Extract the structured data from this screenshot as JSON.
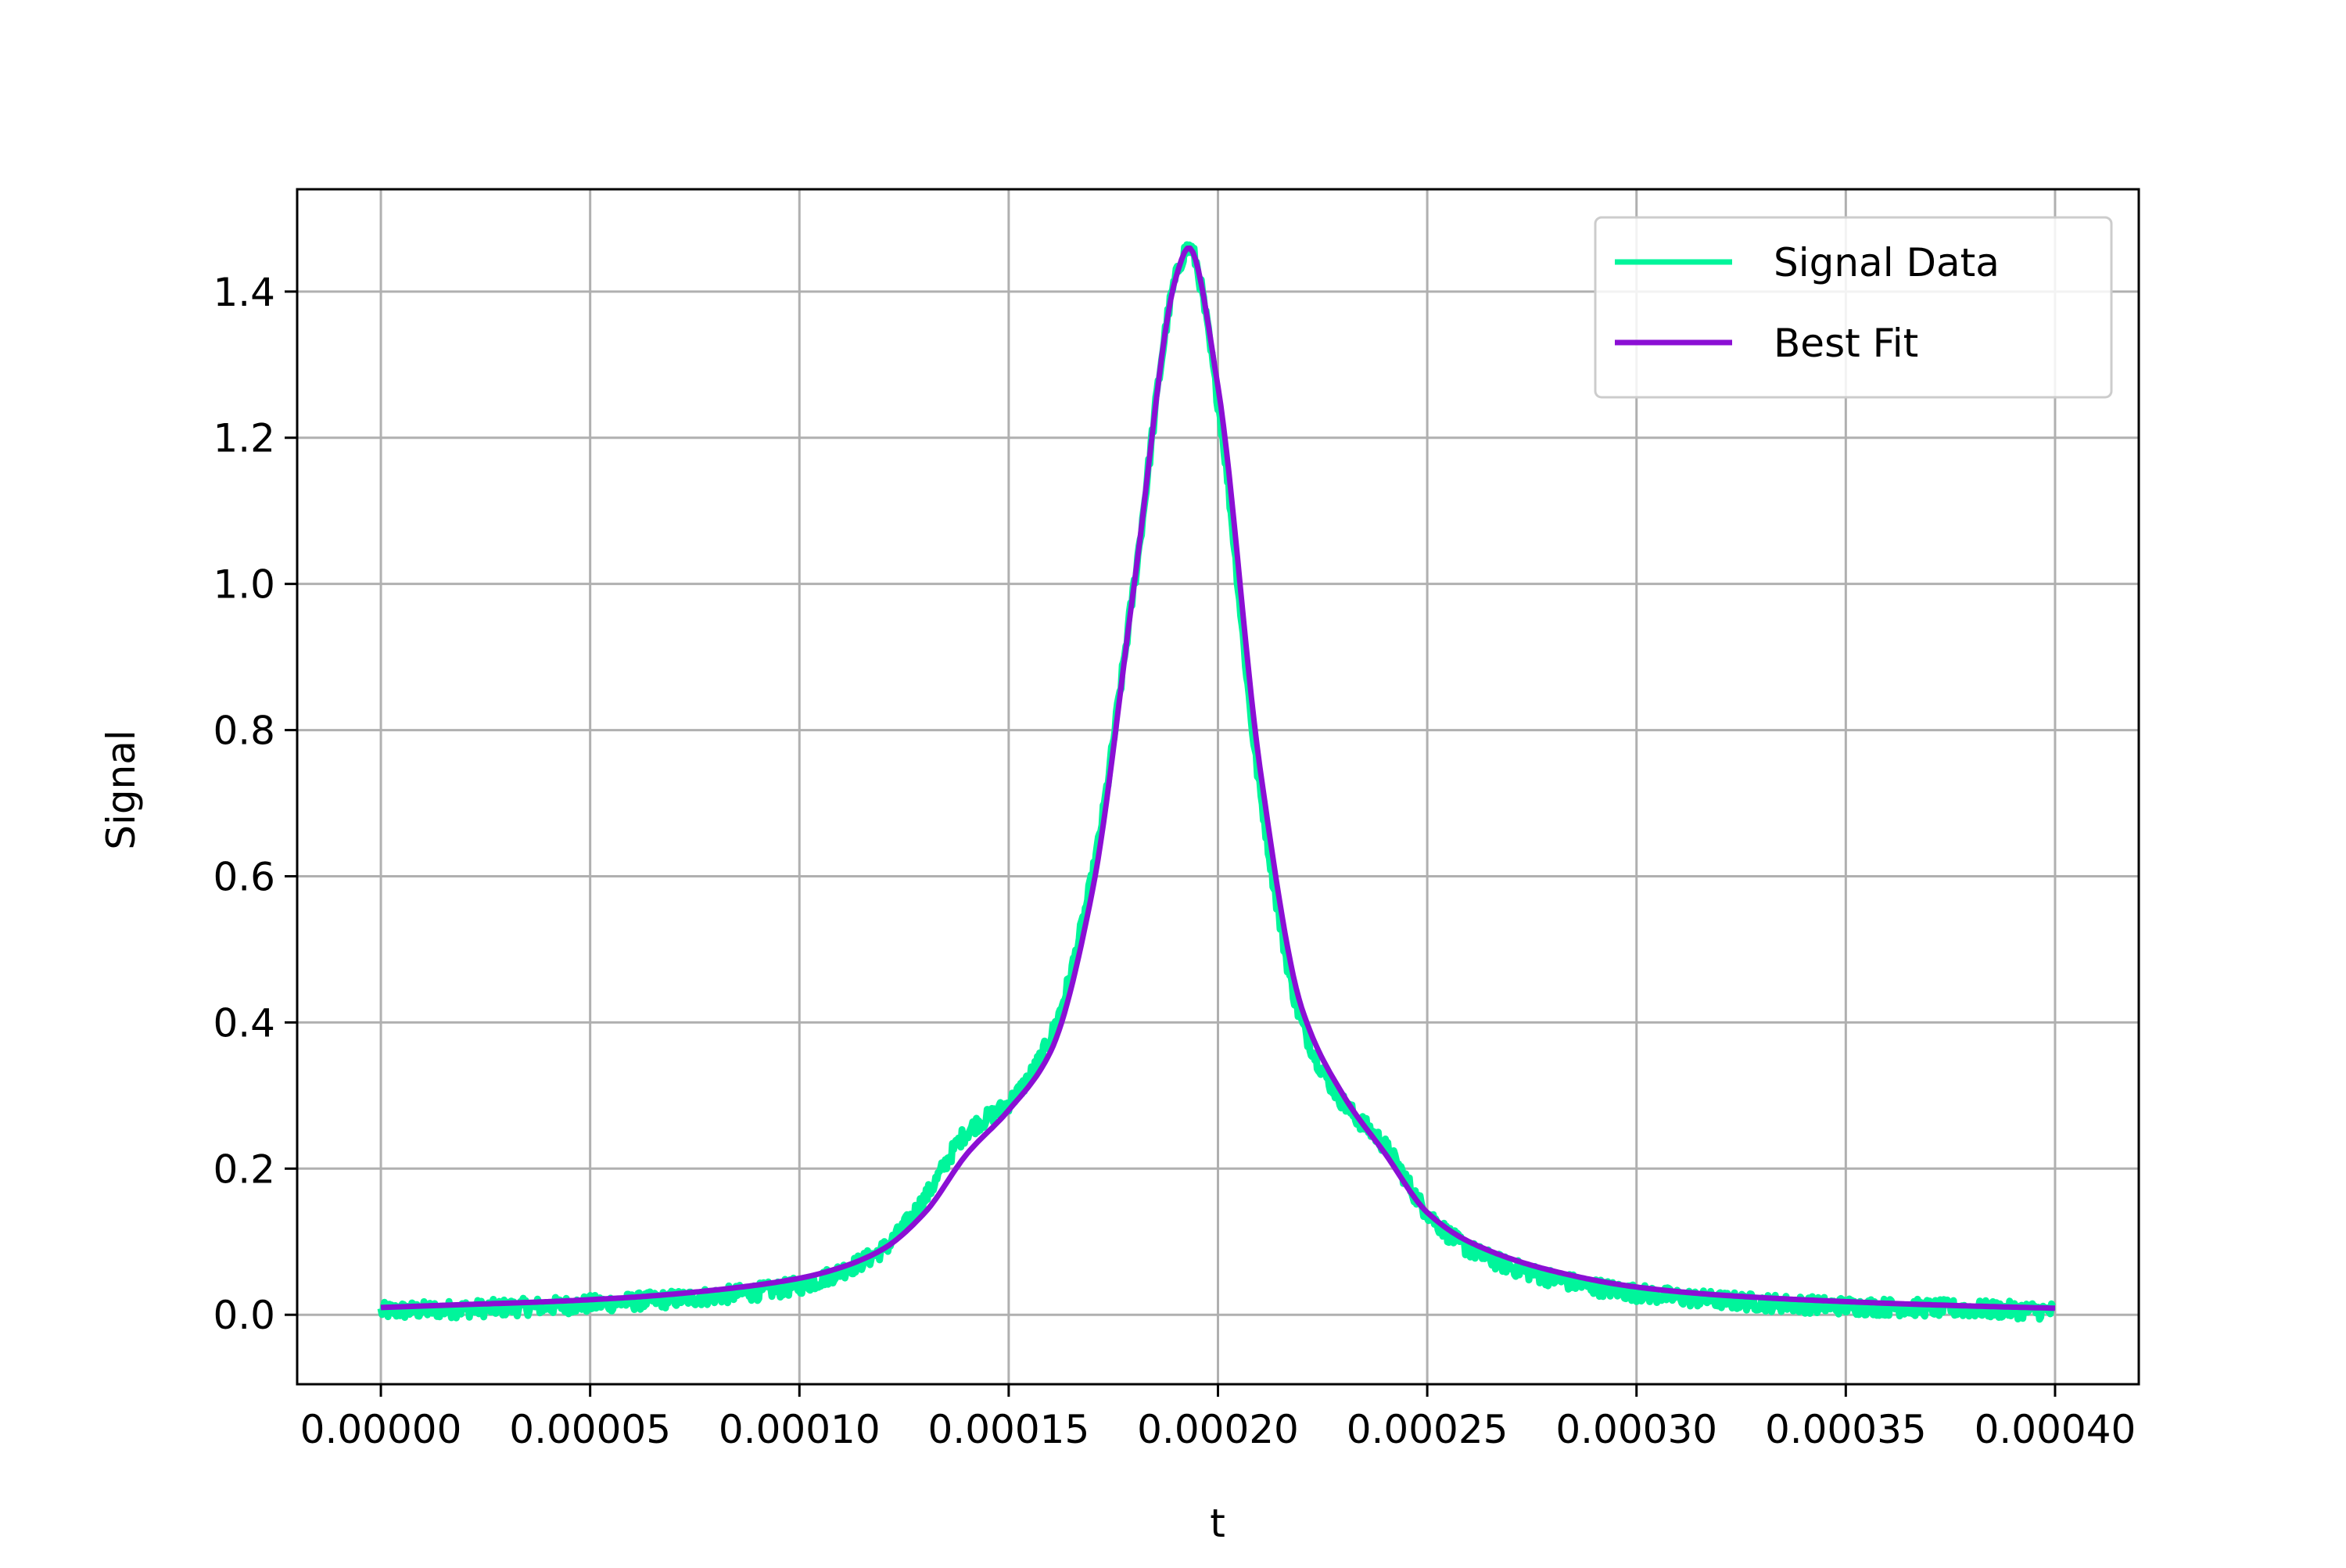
{
  "chart_data": {
    "type": "line",
    "title": "",
    "xlabel": "t",
    "ylabel": "Signal",
    "xlim": [
      -2e-05,
      0.00042
    ],
    "ylim": [
      -0.095,
      1.54
    ],
    "x_ticks": [
      0.0,
      5e-05,
      0.0001,
      0.00015,
      0.0002,
      0.00025,
      0.0003,
      0.00035,
      0.0004
    ],
    "x_tick_labels": [
      "0.00000",
      "0.00005",
      "0.00010",
      "0.00015",
      "0.00020",
      "0.00025",
      "0.00030",
      "0.00035",
      "0.00040"
    ],
    "y_ticks": [
      0.0,
      0.2,
      0.4,
      0.6,
      0.8,
      1.0,
      1.2,
      1.4
    ],
    "y_tick_labels": [
      "0.0",
      "0.2",
      "0.4",
      "0.6",
      "0.8",
      "1.0",
      "1.2",
      "1.4"
    ],
    "grid": true,
    "legend_position": "top-right",
    "series": [
      {
        "name": "Signal Data",
        "color": "#00f59b",
        "style": "noisy band",
        "noise_amplitude": 0.012,
        "x": [
          0.0,
          2e-05,
          4e-05,
          6e-05,
          8e-05,
          0.0001,
          0.00011,
          0.00012,
          0.00013,
          0.00014,
          0.00015,
          0.00016,
          0.00017,
          0.00018,
          0.00019,
          0.000193,
          0.0002,
          0.00021,
          0.00022,
          0.00023,
          0.00024,
          0.00025,
          0.00026,
          0.00028,
          0.0003,
          0.00032,
          0.00035,
          0.00038,
          0.0004
        ],
        "y": [
          0.005,
          0.008,
          0.012,
          0.018,
          0.026,
          0.04,
          0.06,
          0.09,
          0.16,
          0.25,
          0.29,
          0.38,
          0.6,
          1.0,
          1.42,
          1.46,
          1.25,
          0.72,
          0.4,
          0.29,
          0.23,
          0.14,
          0.09,
          0.05,
          0.03,
          0.02,
          0.012,
          0.008,
          0.005
        ]
      },
      {
        "name": "Best Fit",
        "color": "#8b0fd4",
        "style": "smooth line",
        "x": [
          0.0,
          2e-05,
          4e-05,
          6e-05,
          8e-05,
          0.0001,
          0.00011,
          0.00012,
          0.00013,
          0.00014,
          0.00015,
          0.00016,
          0.00017,
          0.00018,
          0.00019,
          0.000193,
          0.0002,
          0.00021,
          0.00022,
          0.00023,
          0.00024,
          0.00025,
          0.00026,
          0.00028,
          0.0003,
          0.00032,
          0.00035,
          0.00038,
          0.0004
        ],
        "y": [
          0.01,
          0.014,
          0.018,
          0.024,
          0.034,
          0.05,
          0.065,
          0.09,
          0.14,
          0.22,
          0.28,
          0.36,
          0.58,
          1.0,
          1.42,
          1.46,
          1.27,
          0.75,
          0.42,
          0.3,
          0.22,
          0.14,
          0.1,
          0.06,
          0.038,
          0.027,
          0.018,
          0.012,
          0.009
        ]
      }
    ]
  }
}
